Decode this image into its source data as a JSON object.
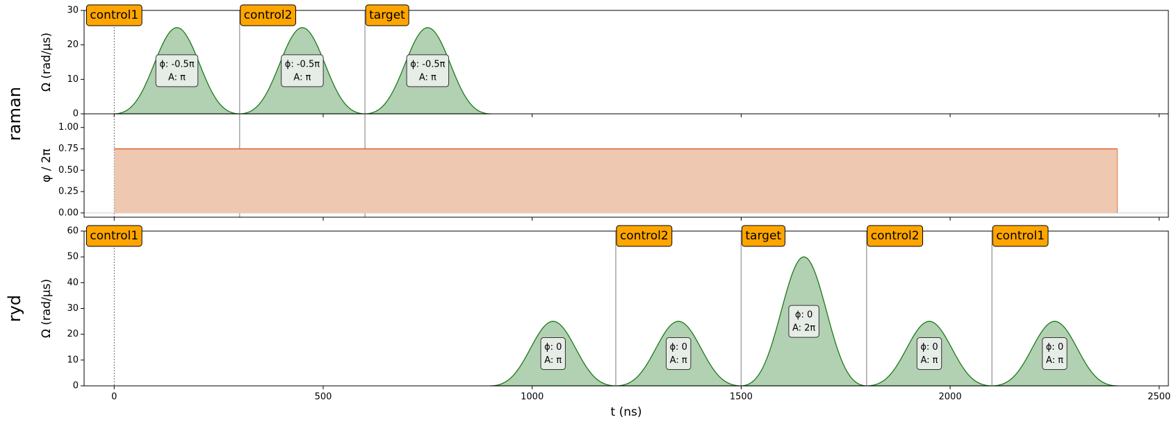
{
  "chart_data": [
    {
      "type": "area",
      "channel": "raman",
      "ylabel": "Ω (rad/µs)",
      "ylim": [
        0,
        30
      ],
      "yticks": [
        0,
        10,
        20,
        30
      ],
      "channel_end": 2400,
      "color": "#1a7a1a",
      "fill": "#b2d0b2",
      "pulses": [
        {
          "t0": 0,
          "t1": 300,
          "peak": 25,
          "phase_label": "ϕ: -0.5π",
          "area_label": "A: π"
        },
        {
          "t0": 300,
          "t1": 600,
          "peak": 25,
          "phase_label": "ϕ: -0.5π",
          "area_label": "A: π"
        },
        {
          "t0": 600,
          "t1": 900,
          "peak": 25,
          "phase_label": "ϕ: -0.5π",
          "area_label": "A: π"
        }
      ],
      "targets": [
        {
          "t": 0,
          "label": "control1"
        },
        {
          "t": 300,
          "label": "control2"
        },
        {
          "t": 600,
          "label": "target"
        }
      ]
    },
    {
      "type": "line",
      "ylabel": "φ / 2π",
      "ylim": [
        -0.05,
        1.16
      ],
      "yticks": [
        {
          "value": 0,
          "label": "0.00"
        },
        {
          "value": 0.25,
          "label": "0.25"
        },
        {
          "value": 0.5,
          "label": "0.50"
        },
        {
          "value": 0.75,
          "label": "0.75"
        },
        {
          "value": 1,
          "label": "1.00"
        }
      ],
      "x": [
        0,
        2400
      ],
      "values": [
        0.75,
        0.75
      ],
      "color": "#d9622b",
      "fill": "#eec8b0"
    },
    {
      "type": "area",
      "channel": "ryd",
      "ylabel": "Ω (rad/µs)",
      "ylim": [
        0,
        60
      ],
      "yticks": [
        0,
        10,
        20,
        30,
        40,
        50,
        60
      ],
      "xlabel": "t (ns)",
      "xlim": [
        -72,
        2522
      ],
      "xticks": [
        0,
        500,
        1000,
        1500,
        2000,
        2500
      ],
      "channel_end": 2400,
      "color": "#1a7a1a",
      "fill": "#b2d0b2",
      "pulses": [
        {
          "t0": 900,
          "t1": 1200,
          "peak": 25,
          "phase_label": "ϕ: 0",
          "area_label": "A: π"
        },
        {
          "t0": 1200,
          "t1": 1500,
          "peak": 25,
          "phase_label": "ϕ: 0",
          "area_label": "A: π"
        },
        {
          "t0": 1500,
          "t1": 1800,
          "peak": 50,
          "phase_label": "ϕ: 0",
          "area_label": "A: 2π"
        },
        {
          "t0": 1800,
          "t1": 2100,
          "peak": 25,
          "phase_label": "ϕ: 0",
          "area_label": "A: π"
        },
        {
          "t0": 2100,
          "t1": 2400,
          "peak": 25,
          "phase_label": "ϕ: 0",
          "area_label": "A: π"
        }
      ],
      "targets": [
        {
          "t": 0,
          "label": "control1"
        },
        {
          "t": 1200,
          "label": "control2"
        },
        {
          "t": 1500,
          "label": "target"
        },
        {
          "t": 1800,
          "label": "control2"
        },
        {
          "t": 2100,
          "label": "control1"
        }
      ]
    }
  ]
}
